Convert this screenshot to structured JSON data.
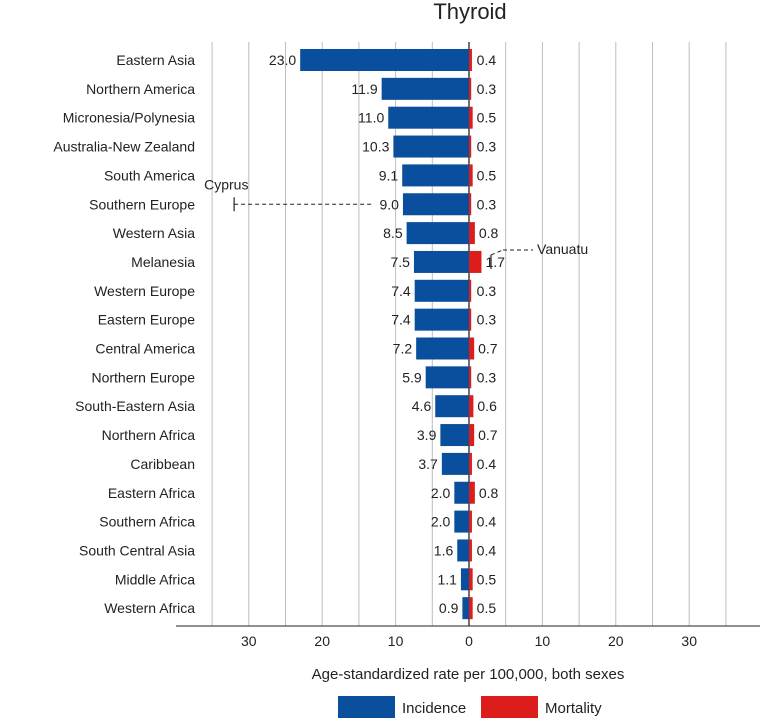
{
  "chart_data": {
    "type": "bar",
    "title": "Thyroid",
    "xlabel": "Age-standardized rate per 100,000, both sexes",
    "xlim": [
      -40,
      40
    ],
    "grid": true,
    "ticks": [
      {
        "value": -30,
        "label": "30"
      },
      {
        "value": -20,
        "label": "20"
      },
      {
        "value": -10,
        "label": "10"
      },
      {
        "value": 0,
        "label": "0"
      },
      {
        "value": 10,
        "label": "10"
      },
      {
        "value": 20,
        "label": "20"
      },
      {
        "value": 30,
        "label": "30"
      }
    ],
    "categories": [
      "Eastern Asia",
      "Northern America",
      "Micronesia/Polynesia",
      "Australia-New Zealand",
      "South America",
      "Southern Europe",
      "Western Asia",
      "Melanesia",
      "Western Europe",
      "Eastern Europe",
      "Central America",
      "Northern Europe",
      "South-Eastern Asia",
      "Northern Africa",
      "Caribbean",
      "Eastern Africa",
      "Southern Africa",
      "South Central Asia",
      "Middle Africa",
      "Western Africa"
    ],
    "series": [
      {
        "name": "Incidence",
        "color": "#0a4f9e",
        "direction": "left",
        "values": [
          23.0,
          11.9,
          11.0,
          10.3,
          9.1,
          9.0,
          8.5,
          7.5,
          7.4,
          7.4,
          7.2,
          5.9,
          4.6,
          3.9,
          3.7,
          2.0,
          2.0,
          1.6,
          1.1,
          0.9
        ],
        "labels": [
          "23.0",
          "11.9",
          "11.0",
          "10.3",
          "9.1",
          "9.0",
          "8.5",
          "7.5",
          "7.4",
          "7.4",
          "7.2",
          "5.9",
          "4.6",
          "3.9",
          "3.7",
          "2.0",
          "2.0",
          "1.6",
          "1.1",
          "0.9"
        ]
      },
      {
        "name": "Mortality",
        "color": "#dd1c1c",
        "direction": "right",
        "values": [
          0.4,
          0.3,
          0.5,
          0.3,
          0.5,
          0.3,
          0.8,
          1.7,
          0.3,
          0.3,
          0.7,
          0.3,
          0.6,
          0.7,
          0.4,
          0.8,
          0.4,
          0.4,
          0.5,
          0.5
        ],
        "labels": [
          "0.4",
          "0.3",
          "0.5",
          "0.3",
          "0.5",
          "0.3",
          "0.8",
          "1.7",
          "0.3",
          "0.3",
          "0.7",
          "0.3",
          "0.6",
          "0.7",
          "0.4",
          "0.8",
          "0.4",
          "0.4",
          "0.5",
          "0.5"
        ]
      }
    ],
    "annotations": [
      {
        "label": "Cyprus",
        "series": "Incidence",
        "category": "Southern Europe",
        "value": 32.0
      },
      {
        "label": "Vanuatu",
        "series": "Mortality",
        "category": "Melanesia",
        "value": 3.0
      }
    ],
    "legend": {
      "position": "bottom",
      "entries": [
        "Incidence",
        "Mortality"
      ]
    }
  }
}
